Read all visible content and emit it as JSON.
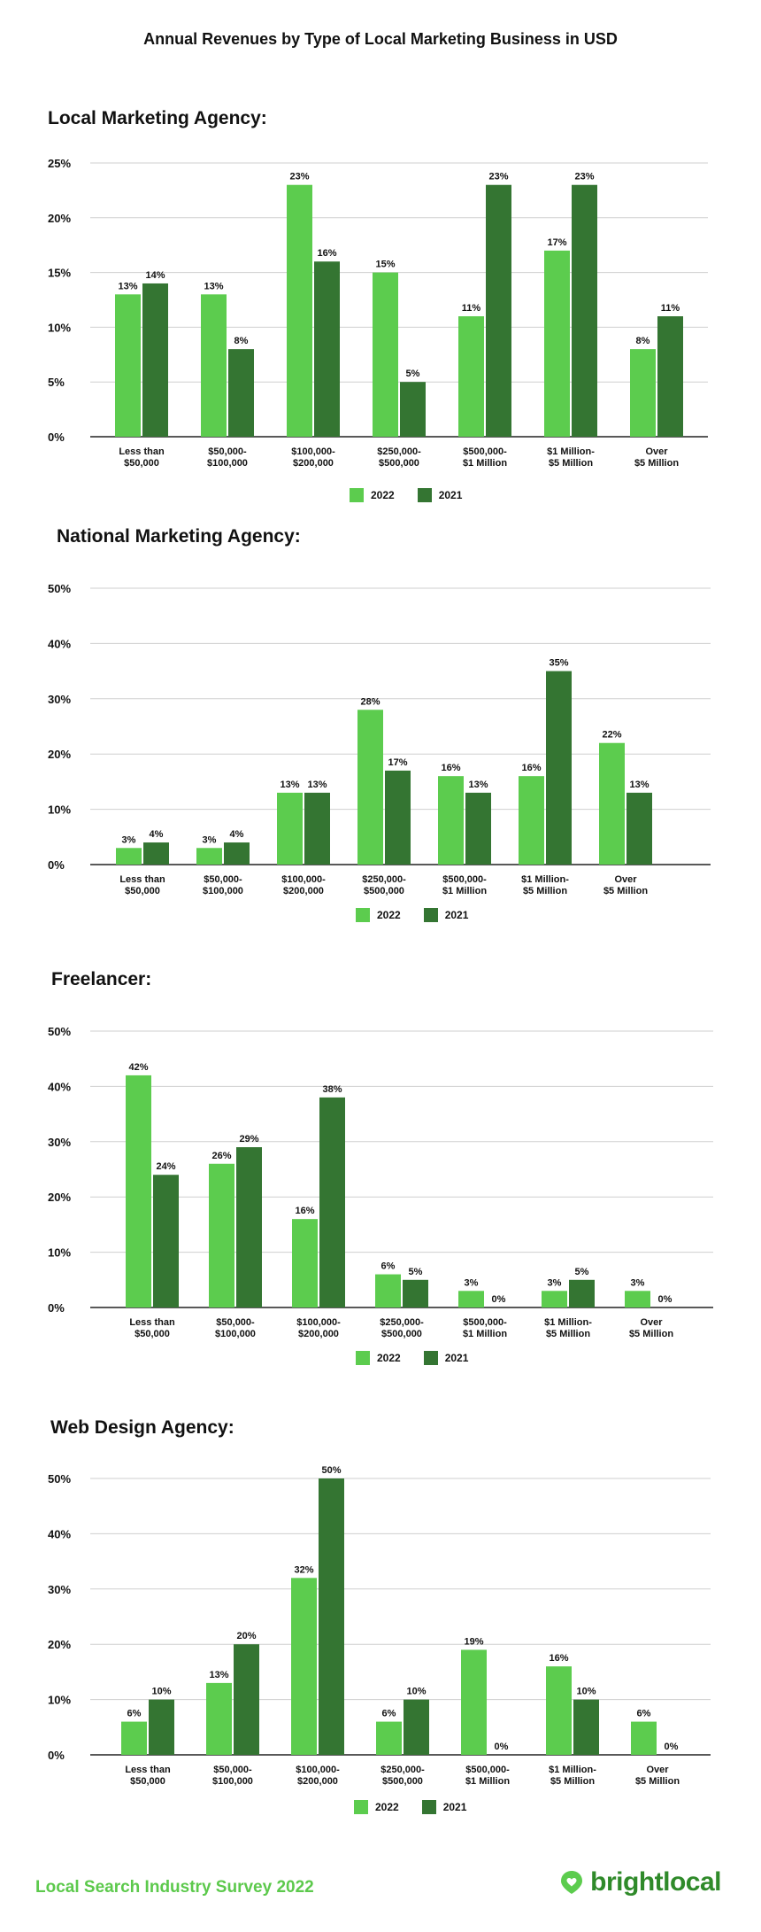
{
  "title": "Annual Revenues by Type of Local Marketing Business in USD",
  "footer": {
    "survey": "Local Search Industry Survey 2022",
    "brand": "brightlocal"
  },
  "colors": {
    "c2022": "#5ccc4e",
    "c2021": "#347532",
    "grid": "#cfcfcf",
    "axis": "#222222"
  },
  "legend": {
    "s2022": "2022",
    "s2021": "2021"
  },
  "chart_data": [
    {
      "type": "bar",
      "title": "Local Marketing Agency:",
      "categories": [
        [
          "Less than",
          "$50,000"
        ],
        [
          "$50,000-",
          "$100,000"
        ],
        [
          "$100,000-",
          "$200,000"
        ],
        [
          "$250,000-",
          "$500,000"
        ],
        [
          "$500,000-",
          "$1 Million"
        ],
        [
          "$1 Million-",
          "$5 Million"
        ],
        [
          "Over",
          "$5 Million"
        ]
      ],
      "series": [
        {
          "name": "2022",
          "values": [
            13,
            13,
            23,
            15,
            11,
            17,
            8
          ]
        },
        {
          "name": "2021",
          "values": [
            14,
            8,
            16,
            5,
            23,
            23,
            11
          ]
        }
      ],
      "ylim": [
        0,
        25
      ],
      "yticks": [
        "0%",
        "5%",
        "10%",
        "15%",
        "20%",
        "25%"
      ],
      "grid": true,
      "legend_position": "bottom-center"
    },
    {
      "type": "bar",
      "title": "National Marketing Agency:",
      "categories": [
        [
          "Less than",
          "$50,000"
        ],
        [
          "$50,000-",
          "$100,000"
        ],
        [
          "$100,000-",
          "$200,000"
        ],
        [
          "$250,000-",
          "$500,000"
        ],
        [
          "$500,000-",
          "$1 Million"
        ],
        [
          "$1 Million-",
          "$5 Million"
        ],
        [
          "Over",
          "$5 Million"
        ]
      ],
      "series": [
        {
          "name": "2022",
          "values": [
            3,
            3,
            13,
            28,
            16,
            16,
            22
          ]
        },
        {
          "name": "2021",
          "values": [
            4,
            4,
            13,
            17,
            13,
            35,
            13
          ]
        }
      ],
      "ylim": [
        0,
        50
      ],
      "yticks": [
        "0%",
        "10%",
        "20%",
        "30%",
        "40%",
        "50%"
      ],
      "grid": true,
      "legend_position": "bottom-center"
    },
    {
      "type": "bar",
      "title": "Freelancer:",
      "categories": [
        [
          "Less than",
          "$50,000"
        ],
        [
          "$50,000-",
          "$100,000"
        ],
        [
          "$100,000-",
          "$200,000"
        ],
        [
          "$250,000-",
          "$500,000"
        ],
        [
          "$500,000-",
          "$1 Million"
        ],
        [
          "$1 Million-",
          "$5 Million"
        ],
        [
          "Over",
          "$5 Million"
        ]
      ],
      "series": [
        {
          "name": "2022",
          "values": [
            42,
            26,
            16,
            6,
            3,
            3,
            3
          ]
        },
        {
          "name": "2021",
          "values": [
            24,
            29,
            38,
            5,
            0,
            5,
            0
          ]
        }
      ],
      "ylim": [
        0,
        50
      ],
      "yticks": [
        "0%",
        "10%",
        "20%",
        "30%",
        "40%",
        "50%"
      ],
      "grid": true,
      "legend_position": "bottom-center"
    },
    {
      "type": "bar",
      "title": "Web Design Agency:",
      "categories": [
        [
          "Less than",
          "$50,000"
        ],
        [
          "$50,000-",
          "$100,000"
        ],
        [
          "$100,000-",
          "$200,000"
        ],
        [
          "$250,000-",
          "$500,000"
        ],
        [
          "$500,000-",
          "$1 Million"
        ],
        [
          "$1 Million-",
          "$5 Million"
        ],
        [
          "Over",
          "$5 Million"
        ]
      ],
      "series": [
        {
          "name": "2022",
          "values": [
            6,
            13,
            32,
            6,
            19,
            16,
            6
          ]
        },
        {
          "name": "2021",
          "values": [
            10,
            20,
            50,
            10,
            0,
            10,
            0
          ]
        }
      ],
      "ylim": [
        0,
        50
      ],
      "yticks": [
        "0%",
        "10%",
        "20%",
        "30%",
        "40%",
        "50%"
      ],
      "grid": true,
      "legend_position": "bottom-center"
    }
  ]
}
